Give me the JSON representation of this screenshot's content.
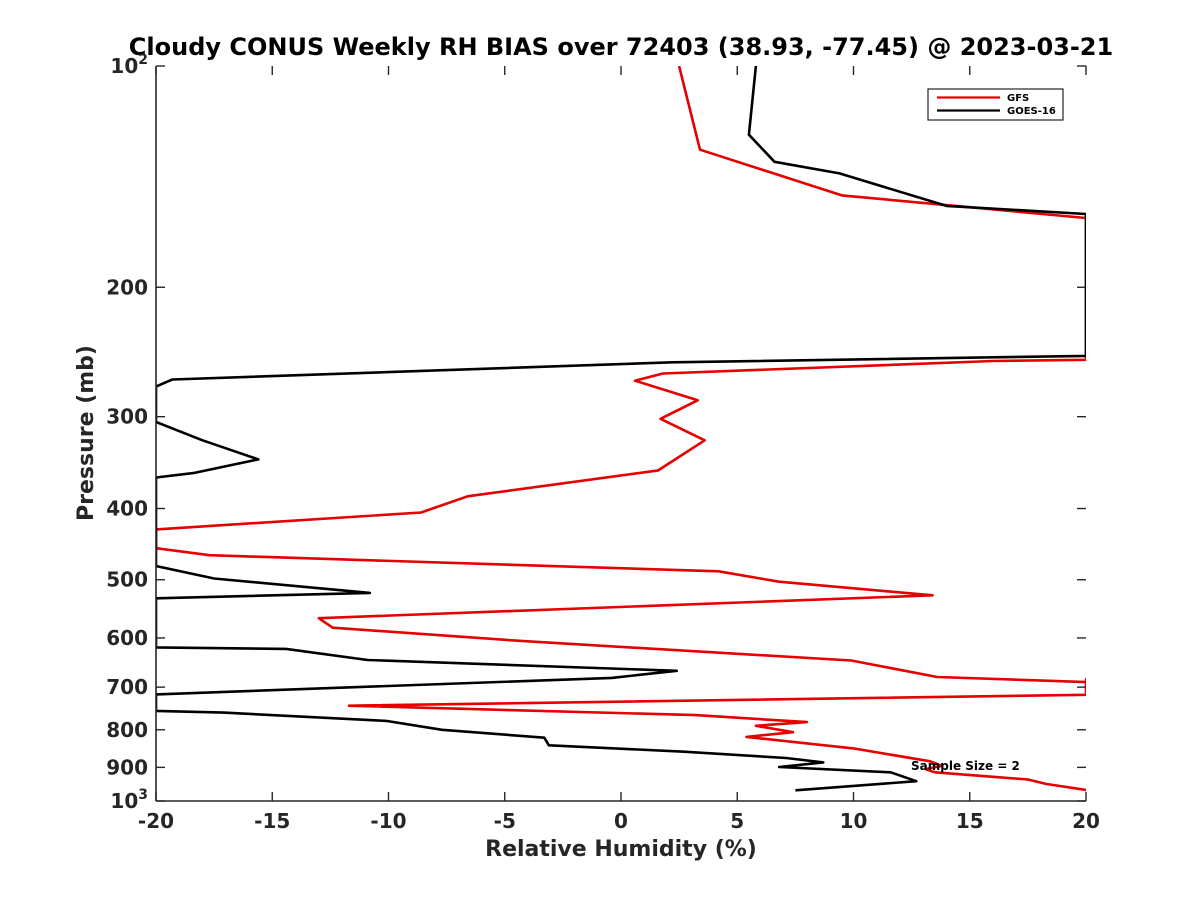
{
  "chart_data": {
    "type": "line",
    "title": "Cloudy CONUS Weekly RH BIAS over 72403 (38.93, -77.45) @ 2023-03-21",
    "xlabel": "Relative Humidity (%)",
    "ylabel": "Pressure (mb)",
    "xlim": [
      -20,
      20
    ],
    "ylim": [
      100,
      1000
    ],
    "y_scale": "log",
    "y_reversed": true,
    "grid": false,
    "legend_position": "top-right",
    "x_ticks": [
      -20,
      -15,
      -10,
      -5,
      0,
      5,
      10,
      15,
      20
    ],
    "x_tick_labels": [
      "-20",
      "-15",
      "-10",
      "-5",
      "0",
      "5",
      "10",
      "15",
      "20"
    ],
    "y_ticks": [
      100,
      200,
      300,
      400,
      500,
      600,
      700,
      800,
      900,
      1000
    ],
    "y_tick_labels": [
      {
        "base": "10",
        "exp": "2"
      },
      {
        "base": "200",
        "exp": ""
      },
      {
        "base": "300",
        "exp": ""
      },
      {
        "base": "400",
        "exp": ""
      },
      {
        "base": "500",
        "exp": ""
      },
      {
        "base": "600",
        "exp": ""
      },
      {
        "base": "700",
        "exp": ""
      },
      {
        "base": "800",
        "exp": ""
      },
      {
        "base": "900",
        "exp": ""
      },
      {
        "base": "10",
        "exp": "3"
      }
    ],
    "annotation": "Sample Size = 2",
    "series": [
      {
        "name": "GFS",
        "color": "#e60000",
        "points": [
          [
            2.5,
            100
          ],
          [
            3.4,
            130
          ],
          [
            9.5,
            150
          ],
          [
            20,
            161
          ],
          [
            20,
            251
          ],
          [
            16,
            252
          ],
          [
            1.8,
            262
          ],
          [
            0.6,
            268
          ],
          [
            3.3,
            285
          ],
          [
            1.7,
            302
          ],
          [
            3.6,
            323
          ],
          [
            1.6,
            355
          ],
          [
            -6.6,
            385
          ],
          [
            -8.6,
            405
          ],
          [
            -20,
            427
          ],
          [
            -20,
            453
          ],
          [
            -17.7,
            463
          ],
          [
            4.2,
            487
          ],
          [
            6.8,
            503
          ],
          [
            13.4,
            525
          ],
          [
            -13.0,
            564
          ],
          [
            -12.4,
            581
          ],
          [
            -4.2,
            606
          ],
          [
            9.9,
            644
          ],
          [
            13.6,
            678
          ],
          [
            20,
            689
          ],
          [
            20,
            683
          ],
          [
            20,
            717
          ],
          [
            -11.7,
            742
          ],
          [
            3.2,
            764
          ],
          [
            8.0,
            781
          ],
          [
            5.8,
            790
          ],
          [
            7.4,
            806
          ],
          [
            5.4,
            818
          ],
          [
            10.0,
            848
          ],
          [
            13.3,
            883
          ],
          [
            13.8,
            896
          ],
          [
            13.1,
            905
          ],
          [
            13.5,
            914
          ],
          [
            17.5,
            935
          ],
          [
            18.3,
            948
          ],
          [
            20,
            966
          ]
        ]
      },
      {
        "name": "GOES-16",
        "color": "#000000",
        "points": [
          [
            5.8,
            100
          ],
          [
            5.5,
            124
          ],
          [
            6.6,
            135
          ],
          [
            9.4,
            140
          ],
          [
            14.0,
            155
          ],
          [
            20,
            159
          ],
          [
            20,
            248
          ],
          [
            2.2,
            253
          ],
          [
            -19.3,
            267
          ],
          [
            -20,
            273
          ],
          [
            -20,
            305
          ],
          [
            -18.0,
            323
          ],
          [
            -15.6,
            343
          ],
          [
            -18.4,
            358
          ],
          [
            -20,
            363
          ],
          [
            -20,
            479
          ],
          [
            -17.5,
            498
          ],
          [
            -10.8,
            521
          ],
          [
            -20,
            530
          ],
          [
            -20,
            618
          ],
          [
            -14.4,
            621
          ],
          [
            -10.9,
            643
          ],
          [
            2.4,
            665
          ],
          [
            -0.4,
            680
          ],
          [
            -20,
            716
          ],
          [
            -20,
            754
          ],
          [
            -17.1,
            758
          ],
          [
            -10.1,
            778
          ],
          [
            -7.7,
            800
          ],
          [
            -3.3,
            820
          ],
          [
            -3.1,
            840
          ],
          [
            2.7,
            857
          ],
          [
            7.1,
            874
          ],
          [
            8.7,
            886
          ],
          [
            6.8,
            899
          ],
          [
            11.6,
            914
          ],
          [
            12.7,
            940
          ],
          [
            7.5,
            967
          ]
        ]
      }
    ]
  }
}
